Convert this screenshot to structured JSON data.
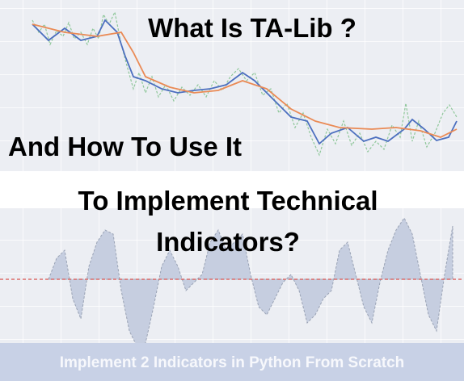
{
  "header": {
    "title": "What Is TA-Lib ?",
    "subtitle": "And How To Use It"
  },
  "body": {
    "line1": "To Implement Technical",
    "line2": "Indicators?"
  },
  "footer": {
    "banner": "Implement 2 Indicators in Python From Scratch"
  }
}
